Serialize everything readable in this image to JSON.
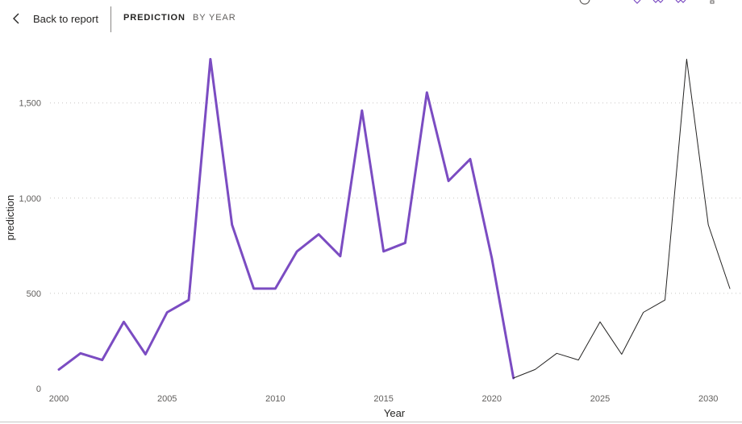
{
  "header": {
    "back_label": "Back to report",
    "tabs": [
      {
        "label": "PREDICTION",
        "active": true
      },
      {
        "label": "BY YEAR",
        "active": false
      }
    ],
    "toolbar_icons": [
      "focus-icon",
      "drill-down-icon",
      "expand-next-level-icon",
      "go-to-next-level-icon",
      "more-options-icon"
    ]
  },
  "colors": {
    "accent": "#7B4CC2",
    "forecast": "#252423",
    "gridline": "#C8C6C4"
  },
  "chart_data": {
    "type": "line",
    "xlabel": "Year",
    "ylabel": "prediction",
    "xlim": [
      2000,
      2031
    ],
    "ylim": [
      0,
      1750
    ],
    "x_ticks": [
      "2000",
      "2005",
      "2010",
      "2015",
      "2020",
      "2025",
      "2030"
    ],
    "y_ticks": [
      "0",
      "500",
      "1,000",
      "1,500"
    ],
    "grid": "horizontal dotted",
    "legend": "none",
    "series": [
      {
        "x": [
          2000,
          2001,
          2002,
          2003,
          2004,
          2005,
          2006,
          2007,
          2008,
          2009,
          2010,
          2011,
          2012,
          2013,
          2014,
          2015,
          2016,
          2017,
          2018,
          2019,
          2020,
          2021
        ],
        "values": [
          100,
          185,
          150,
          350,
          180,
          400,
          465,
          1730,
          860,
          525,
          525,
          720,
          810,
          695,
          1460,
          720,
          765,
          1555,
          1090,
          1205,
          685,
          55
        ],
        "color": "#7B4CC2",
        "stroke_width": 3
      },
      {
        "x": [
          2021,
          2022,
          2023,
          2024,
          2025,
          2026,
          2027,
          2028,
          2029,
          2030,
          2031
        ],
        "values": [
          55,
          100,
          185,
          150,
          350,
          180,
          400,
          465,
          1730,
          860,
          525
        ],
        "color": "#252423",
        "stroke_width": 1
      }
    ]
  }
}
